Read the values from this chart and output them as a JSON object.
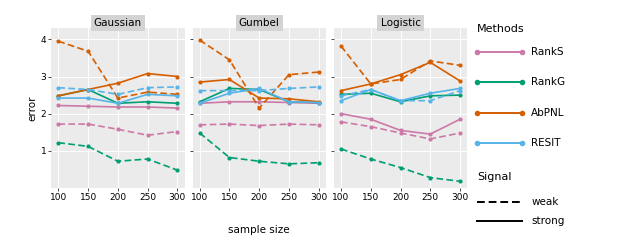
{
  "x": [
    100,
    150,
    200,
    250,
    300
  ],
  "panels": [
    "Gaussian",
    "Gumbel",
    "Logistic"
  ],
  "methods": [
    "RankS",
    "RankG",
    "AbPNL",
    "RESIT"
  ],
  "colors": {
    "RankS": "#CC79A7",
    "RankG": "#009E73",
    "AbPNL": "#D55E00",
    "RESIT": "#56B4E9"
  },
  "data": {
    "Gaussian": {
      "RankS_strong": [
        2.22,
        2.2,
        2.18,
        2.18,
        2.15
      ],
      "RankS_weak": [
        1.72,
        1.72,
        1.58,
        1.42,
        1.52
      ],
      "RankG_strong": [
        2.48,
        2.65,
        2.28,
        2.32,
        2.28
      ],
      "RankG_weak": [
        1.22,
        1.12,
        0.72,
        0.78,
        0.48
      ],
      "AbPNL_strong": [
        2.48,
        2.65,
        2.82,
        3.08,
        3.0
      ],
      "AbPNL_weak": [
        3.95,
        3.68,
        2.42,
        2.58,
        2.52
      ],
      "RESIT_strong": [
        2.42,
        2.42,
        2.28,
        2.52,
        2.48
      ],
      "RESIT_weak": [
        2.7,
        2.65,
        2.52,
        2.7,
        2.72
      ]
    },
    "Gumbel": {
      "RankS_strong": [
        2.28,
        2.32,
        2.32,
        2.3,
        2.28
      ],
      "RankS_weak": [
        1.7,
        1.72,
        1.68,
        1.72,
        1.7
      ],
      "RankG_strong": [
        2.32,
        2.68,
        2.65,
        2.32,
        2.3
      ],
      "RankG_weak": [
        1.48,
        0.82,
        0.72,
        0.65,
        0.68
      ],
      "AbPNL_strong": [
        2.85,
        2.92,
        2.42,
        2.4,
        2.32
      ],
      "AbPNL_weak": [
        3.98,
        3.45,
        2.15,
        3.05,
        3.12
      ],
      "RESIT_strong": [
        2.28,
        2.55,
        2.68,
        2.32,
        2.3
      ],
      "RESIT_weak": [
        2.62,
        2.62,
        2.62,
        2.68,
        2.72
      ]
    },
    "Logistic": {
      "RankS_strong": [
        2.0,
        1.85,
        1.55,
        1.45,
        1.85
      ],
      "RankS_weak": [
        1.78,
        1.65,
        1.48,
        1.32,
        1.48
      ],
      "RankG_strong": [
        2.52,
        2.55,
        2.32,
        2.48,
        2.5
      ],
      "RankG_weak": [
        1.05,
        0.78,
        0.55,
        0.28,
        0.18
      ],
      "AbPNL_strong": [
        2.62,
        2.8,
        3.05,
        3.38,
        2.88
      ],
      "AbPNL_weak": [
        3.82,
        2.8,
        2.92,
        3.42,
        3.3
      ],
      "RESIT_strong": [
        2.35,
        2.65,
        2.35,
        2.55,
        2.68
      ],
      "RESIT_weak": [
        2.48,
        2.65,
        2.35,
        2.35,
        2.62
      ]
    }
  },
  "ylim": [
    0.0,
    4.3
  ],
  "yticks": [
    1.0,
    2.0,
    3.0,
    4.0
  ],
  "ylabel": "error",
  "xlabel": "sample size",
  "panel_bg": "#EBEBEB",
  "strip_bg": "#D3D3D3"
}
